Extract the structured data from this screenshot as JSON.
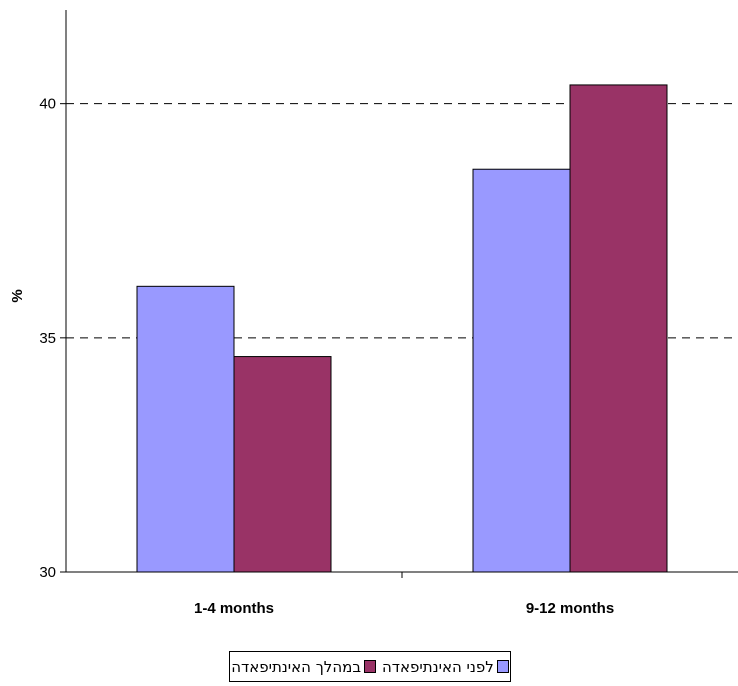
{
  "chart_data": {
    "type": "bar",
    "categories": [
      "1-4 months",
      "9-12 months"
    ],
    "series": [
      {
        "name": "לפני האינתיפאדה",
        "color": "#9999ff",
        "values": [
          36.1,
          38.6
        ]
      },
      {
        "name": "במהלך האינתיפאדה",
        "color": "#993366",
        "values": [
          34.6,
          40.4
        ]
      }
    ],
    "ylabel": "%",
    "xlabel": "",
    "ylim": [
      30,
      42
    ],
    "yticks": [
      30,
      35,
      40
    ],
    "gridlines": [
      35,
      40
    ],
    "grid": "dashed horizontal",
    "legend_position": "bottom"
  }
}
